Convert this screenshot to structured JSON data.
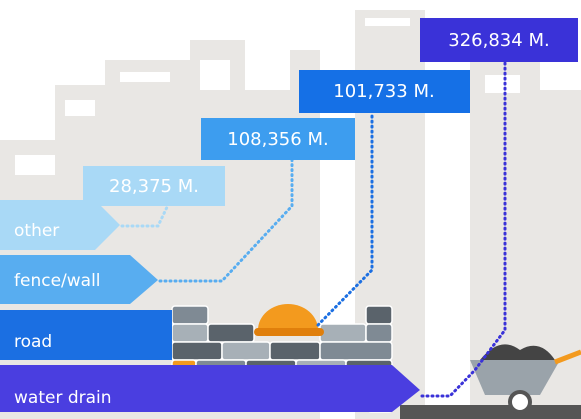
{
  "items": [
    {
      "label": "other",
      "value": "28,375 M."
    },
    {
      "label": "fence/wall",
      "value": "108,356 M."
    },
    {
      "label": "road",
      "value": "101,733 M."
    },
    {
      "label": "water drain",
      "value": "326,834 M."
    }
  ]
}
